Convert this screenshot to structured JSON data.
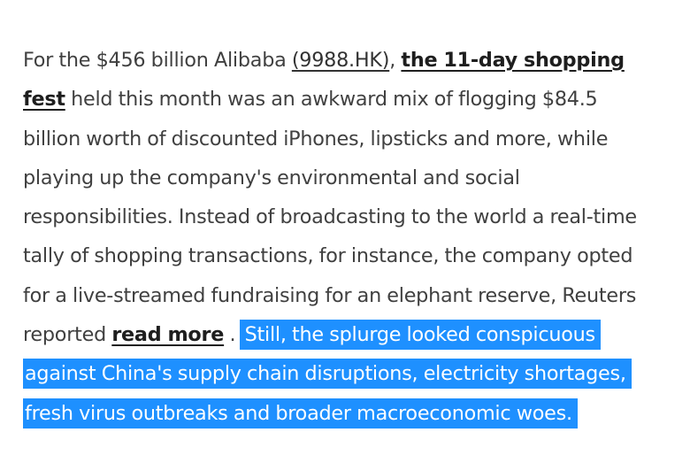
{
  "article": {
    "line1": {
      "pre": "For the $456 billion Alibaba ",
      "ticker_link": "(9988.HK)",
      "mid": ", ",
      "fest_link_part1": "the 11-day shopping"
    },
    "line2": {
      "fest_link_part2": "fest",
      "text": " held this month was an awkward mix of flogging $84.5"
    },
    "line3": "billion worth of discounted iPhones, lipsticks and more, while",
    "line4": "playing up the company's environmental and social",
    "line5": "responsibilities. Instead of broadcasting to the world a real-time",
    "line6": "tally of shopping transactions, for instance, the company opted",
    "line7": "for a live-streamed fundraising for an elephant reserve, Reuters",
    "line8": {
      "pre": "reported ",
      "read_more_link": "read more",
      "post": " . ",
      "highlight": "Still, the splurge looked conspicuous"
    },
    "line9": "against China's supply chain disruptions, electricity shortages,",
    "line10": "fresh virus outbreaks and broader macroeconomic woes."
  },
  "colors": {
    "text": "#404040",
    "link": "#1e1e1e",
    "selection": "#1e90ff",
    "selection_text": "#ffffff"
  }
}
